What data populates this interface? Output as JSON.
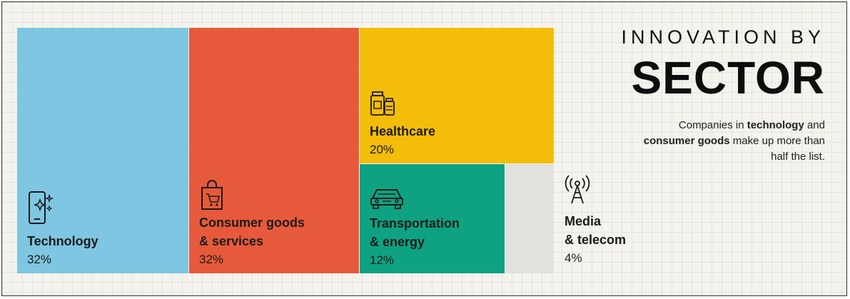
{
  "header": {
    "title_top": "INNOVATION BY",
    "title_main": "SECTOR",
    "subtitle": {
      "p1": "Companies in ",
      "b1": "technology",
      "p2": " and ",
      "b2": "consumer goods",
      "p3": " make up more than half the list."
    }
  },
  "colors": {
    "technology": "#7ec6e1",
    "consumer": "#e65a3b",
    "healthcare": "#f4bd0a",
    "transport": "#0ea282",
    "media": "#e2e1dd"
  },
  "chart_data": {
    "type": "treemap",
    "unit": "%",
    "items": [
      {
        "name": "Technology",
        "value": 32,
        "label": "32%",
        "icon": "smartphone-icon"
      },
      {
        "name": "Consumer goods\n& services",
        "value": 32,
        "label": "32%",
        "icon": "shopping-bag-icon"
      },
      {
        "name": "Healthcare",
        "value": 20,
        "label": "20%",
        "icon": "medicine-bottles-icon"
      },
      {
        "name": "Transportation\n& energy",
        "value": 12,
        "label": "12%",
        "icon": "car-icon"
      },
      {
        "name": "Media\n& telecom",
        "value": 4,
        "label": "4%",
        "icon": "antenna-tower-icon"
      }
    ]
  }
}
